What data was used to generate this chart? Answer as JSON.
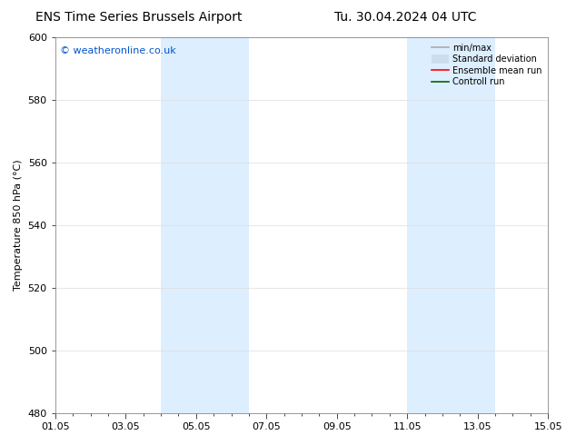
{
  "title_left": "ENS Time Series Brussels Airport",
  "title_right": "Tu. 30.04.2024 04 UTC",
  "ylabel": "Temperature 850 hPa (°C)",
  "ylim": [
    480,
    600
  ],
  "yticks": [
    480,
    500,
    520,
    540,
    560,
    580,
    600
  ],
  "xtick_labels": [
    "01.05",
    "03.05",
    "05.05",
    "07.05",
    "09.05",
    "11.05",
    "13.05",
    "15.05"
  ],
  "xtick_positions": [
    0,
    2,
    4,
    6,
    8,
    10,
    12,
    14
  ],
  "xlim": [
    0,
    14
  ],
  "shaded_regions": [
    {
      "x_start": 3,
      "x_end": 5.5,
      "color": "#ddeeff"
    },
    {
      "x_start": 10,
      "x_end": 12.5,
      "color": "#ddeeff"
    }
  ],
  "watermark_text": "© weatheronline.co.uk",
  "watermark_color": "#0055cc",
  "watermark_fontsize": 8,
  "legend_items": [
    {
      "label": "min/max",
      "color": "#aaaaaa",
      "lw": 1.2,
      "ls": "-"
    },
    {
      "label": "Standard deviation",
      "color": "#ccdded",
      "lw": 7,
      "ls": "-"
    },
    {
      "label": "Ensemble mean run",
      "color": "#ff0000",
      "lw": 1.2,
      "ls": "-"
    },
    {
      "label": "Controll run",
      "color": "#006600",
      "lw": 1.2,
      "ls": "-"
    }
  ],
  "background_color": "#ffffff",
  "plot_bg_color": "#ffffff",
  "grid_color": "#dddddd",
  "title_fontsize": 10,
  "axis_fontsize": 8,
  "tick_fontsize": 8,
  "legend_fontsize": 7
}
